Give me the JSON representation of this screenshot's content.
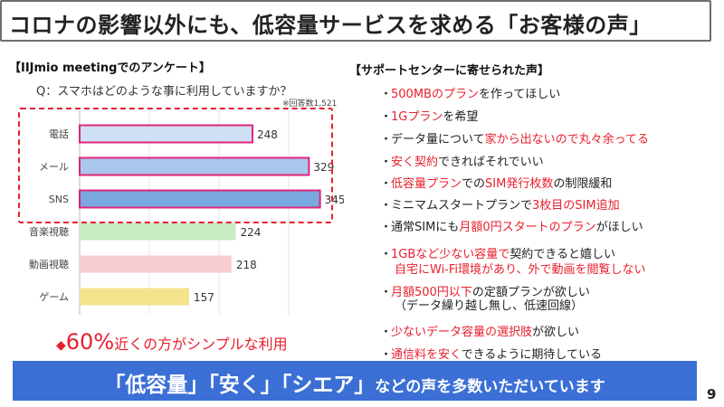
{
  "title": "コロナの影響以外にも、低容量サービスを求める「お客様の声」",
  "left_section_title": "【IIJmio meetingでのアンケート】",
  "question": "Q：スマホはどのような事に利用していますか？",
  "note": "※回答数1,521",
  "chart_data": {
    "type": "bar",
    "orientation": "horizontal",
    "categories": [
      "電話",
      "メール",
      "SNS",
      "音楽視聴",
      "動画視聴",
      "ゲーム"
    ],
    "values": [
      248,
      329,
      345,
      224,
      218,
      157
    ],
    "colors": [
      "#cfe0f4",
      "#a9c7ec",
      "#7aa8e0",
      "#c9ebc4",
      "#f7cdd0",
      "#f4e38b"
    ],
    "highlight": [
      true,
      true,
      true,
      false,
      false,
      false
    ],
    "highlight_color": "#e0257a",
    "xlim": [
      0,
      400
    ],
    "grid": true
  },
  "footnote": {
    "diamond": "◆",
    "pct": "60%",
    "text": "近くの方がシンプルな利用"
  },
  "right_section_title": "【サポートセンターに寄せられた声】",
  "voices": [
    {
      "parts": [
        {
          "t": "500MBのプラン",
          "r": true
        },
        {
          "t": "を作ってほしい",
          "r": false
        }
      ]
    },
    {
      "parts": [
        {
          "t": "1Gプラン",
          "r": true
        },
        {
          "t": "を希望",
          "r": false
        }
      ]
    },
    {
      "parts": [
        {
          "t": "データ量について",
          "r": false
        },
        {
          "t": "家から出ないので丸々余ってる",
          "r": true
        }
      ]
    },
    {
      "parts": [
        {
          "t": "安く契約",
          "r": true
        },
        {
          "t": "できればそれでいい",
          "r": false
        }
      ]
    },
    {
      "parts": [
        {
          "t": "低容量プラン",
          "r": true
        },
        {
          "t": "での",
          "r": false
        },
        {
          "t": "SIM発行枚数",
          "r": true
        },
        {
          "t": "の制限緩和",
          "r": false
        }
      ]
    },
    {
      "parts": [
        {
          "t": "ミニマムスタートプランで",
          "r": false
        },
        {
          "t": "3枚目のSIM追加",
          "r": true
        }
      ]
    },
    {
      "parts": [
        {
          "t": "通常SIMにも",
          "r": false
        },
        {
          "t": "月額0円スタートのプラン",
          "r": true
        },
        {
          "t": "がほしい",
          "r": false
        }
      ]
    },
    {
      "parts": [
        {
          "t": "1GBなど少ない容量で",
          "r": true
        },
        {
          "t": "契約できると嬉しい",
          "r": false
        }
      ]
    },
    {
      "parts": [
        {
          "t": "月額500円以下",
          "r": true
        },
        {
          "t": "の定額プランが欲しい",
          "r": false
        }
      ]
    },
    {
      "parts": [
        {
          "t": "少ないデータ容量の選択肢",
          "r": true
        },
        {
          "t": "が欲しい",
          "r": false
        }
      ]
    },
    {
      "parts": [
        {
          "t": "通信料を安く",
          "r": true
        },
        {
          "t": "できるように期待している",
          "r": false
        }
      ]
    }
  ],
  "voice_sub_1": "自宅にWi-Fi環境があり、外で動画を閲覧しない",
  "voice_sub_2": "（データ繰り越し無し、低速回線）",
  "bullet": "・",
  "banner": {
    "q1": "「低容量」",
    "q2": "「安く」",
    "q3": "「シエア」",
    "rest": "などの声を多数いただいています"
  },
  "page_number": "9"
}
